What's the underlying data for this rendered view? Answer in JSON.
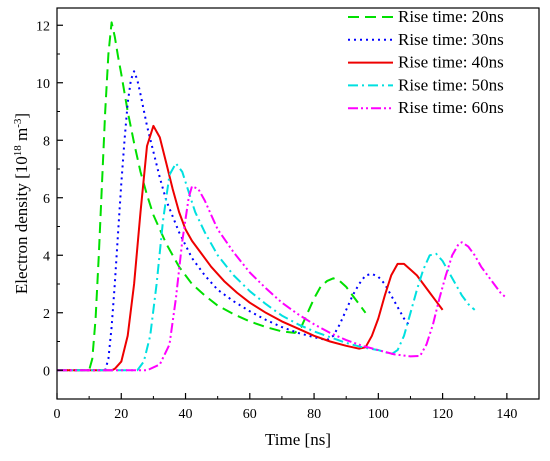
{
  "chart_data": {
    "type": "line",
    "xlabel": "Time [ns]",
    "ylabel": {
      "base": "Electron density [10",
      "exp1": "18",
      "mid": " m",
      "exp2": "-3",
      "end": "]"
    },
    "xlim": [
      0,
      150
    ],
    "ylim": [
      -1,
      12.6
    ],
    "xticks": [
      0,
      20,
      40,
      60,
      80,
      100,
      120,
      140
    ],
    "yticks": [
      0,
      2,
      4,
      6,
      8,
      10,
      12
    ],
    "grid": false,
    "legend_position": "top-right",
    "series": [
      {
        "name": "Rise time: 20ns",
        "color": "#00e000",
        "dash": "dashed",
        "points": [
          [
            0,
            0
          ],
          [
            10,
            0
          ],
          [
            11,
            0.4
          ],
          [
            12,
            1.8
          ],
          [
            13,
            4
          ],
          [
            14,
            6.5
          ],
          [
            15,
            9
          ],
          [
            16,
            11
          ],
          [
            17,
            12.1
          ],
          [
            18,
            11.6
          ],
          [
            19,
            10.9
          ],
          [
            20,
            10.3
          ],
          [
            22,
            9.0
          ],
          [
            24,
            7.9
          ],
          [
            26,
            6.9
          ],
          [
            28,
            6.1
          ],
          [
            30,
            5.4
          ],
          [
            34,
            4.4
          ],
          [
            38,
            3.6
          ],
          [
            42,
            3.0
          ],
          [
            46,
            2.6
          ],
          [
            50,
            2.25
          ],
          [
            55,
            1.95
          ],
          [
            60,
            1.7
          ],
          [
            65,
            1.5
          ],
          [
            70,
            1.35
          ],
          [
            74,
            1.3
          ],
          [
            76,
            1.5
          ],
          [
            78,
            2.0
          ],
          [
            80,
            2.5
          ],
          [
            82,
            2.9
          ],
          [
            84,
            3.1
          ],
          [
            86,
            3.2
          ],
          [
            88,
            3.1
          ],
          [
            90,
            2.9
          ],
          [
            92,
            2.6
          ],
          [
            94,
            2.3
          ],
          [
            96,
            2.0
          ]
        ]
      },
      {
        "name": "Rise time: 30ns",
        "color": "#0000ff",
        "dash": "dotted",
        "points": [
          [
            0,
            0
          ],
          [
            15,
            0
          ],
          [
            16,
            0.4
          ],
          [
            17,
            1.5
          ],
          [
            18,
            3
          ],
          [
            19,
            4.8
          ],
          [
            20,
            6.5
          ],
          [
            21,
            8
          ],
          [
            22,
            9.3
          ],
          [
            23,
            10.1
          ],
          [
            24,
            10.4
          ],
          [
            25,
            10.1
          ],
          [
            26,
            9.6
          ],
          [
            28,
            8.5
          ],
          [
            30,
            7.6
          ],
          [
            32,
            6.7
          ],
          [
            34,
            5.9
          ],
          [
            38,
            4.8
          ],
          [
            42,
            3.9
          ],
          [
            46,
            3.3
          ],
          [
            50,
            2.8
          ],
          [
            55,
            2.4
          ],
          [
            60,
            2.05
          ],
          [
            65,
            1.75
          ],
          [
            70,
            1.5
          ],
          [
            75,
            1.3
          ],
          [
            80,
            1.15
          ],
          [
            84,
            1.05
          ],
          [
            86,
            1.2
          ],
          [
            88,
            1.6
          ],
          [
            90,
            2.1
          ],
          [
            92,
            2.6
          ],
          [
            94,
            3.0
          ],
          [
            96,
            3.3
          ],
          [
            98,
            3.35
          ],
          [
            100,
            3.25
          ],
          [
            102,
            3.0
          ],
          [
            104,
            2.6
          ],
          [
            106,
            2.2
          ],
          [
            108,
            1.8
          ],
          [
            110,
            1.5
          ]
        ]
      },
      {
        "name": "Rise time: 40ns",
        "color": "#ee0000",
        "dash": "solid",
        "points": [
          [
            0,
            0
          ],
          [
            17,
            0
          ],
          [
            18,
            0.05
          ],
          [
            20,
            0.3
          ],
          [
            22,
            1.2
          ],
          [
            24,
            3
          ],
          [
            26,
            5.5
          ],
          [
            28,
            7.8
          ],
          [
            30,
            8.5
          ],
          [
            31,
            8.3
          ],
          [
            32,
            8.1
          ],
          [
            34,
            7.2
          ],
          [
            36,
            6.3
          ],
          [
            38,
            5.5
          ],
          [
            40,
            4.9
          ],
          [
            42,
            4.5
          ],
          [
            44,
            4.2
          ],
          [
            48,
            3.6
          ],
          [
            52,
            3.1
          ],
          [
            56,
            2.7
          ],
          [
            60,
            2.35
          ],
          [
            65,
            2.0
          ],
          [
            70,
            1.7
          ],
          [
            75,
            1.45
          ],
          [
            80,
            1.2
          ],
          [
            85,
            1.0
          ],
          [
            90,
            0.85
          ],
          [
            94,
            0.75
          ],
          [
            96,
            0.8
          ],
          [
            98,
            1.2
          ],
          [
            100,
            1.8
          ],
          [
            102,
            2.6
          ],
          [
            104,
            3.3
          ],
          [
            106,
            3.7
          ],
          [
            108,
            3.7
          ],
          [
            110,
            3.5
          ],
          [
            112,
            3.3
          ],
          [
            114,
            3.0
          ],
          [
            116,
            2.7
          ],
          [
            118,
            2.4
          ],
          [
            120,
            2.1
          ]
        ]
      },
      {
        "name": "Rise time: 50ns",
        "color": "#00e0e0",
        "dash": "dashdot",
        "points": [
          [
            0,
            0
          ],
          [
            25,
            0
          ],
          [
            27,
            0.3
          ],
          [
            29,
            1.2
          ],
          [
            31,
            3
          ],
          [
            33,
            5.2
          ],
          [
            35,
            6.8
          ],
          [
            37,
            7.2
          ],
          [
            39,
            6.9
          ],
          [
            41,
            6.2
          ],
          [
            43,
            5.5
          ],
          [
            46,
            4.8
          ],
          [
            50,
            4.0
          ],
          [
            55,
            3.3
          ],
          [
            60,
            2.75
          ],
          [
            65,
            2.3
          ],
          [
            70,
            1.9
          ],
          [
            75,
            1.6
          ],
          [
            80,
            1.35
          ],
          [
            85,
            1.15
          ],
          [
            90,
            0.95
          ],
          [
            95,
            0.8
          ],
          [
            100,
            0.7
          ],
          [
            103,
            0.6
          ],
          [
            104,
            0.55
          ],
          [
            106,
            0.7
          ],
          [
            108,
            1.2
          ],
          [
            110,
            2.0
          ],
          [
            112,
            2.8
          ],
          [
            114,
            3.5
          ],
          [
            116,
            4.0
          ],
          [
            118,
            4.05
          ],
          [
            120,
            3.8
          ],
          [
            122,
            3.4
          ],
          [
            124,
            3.0
          ],
          [
            126,
            2.6
          ],
          [
            128,
            2.3
          ],
          [
            130,
            2.1
          ]
        ]
      },
      {
        "name": "Rise time: 60ns",
        "color": "#ff00ff",
        "dash": "dashdotdot",
        "points": [
          [
            0,
            0
          ],
          [
            28,
            0
          ],
          [
            32,
            0.2
          ],
          [
            35,
            0.9
          ],
          [
            37,
            2.5
          ],
          [
            39,
            4.5
          ],
          [
            41,
            6.0
          ],
          [
            42,
            6.4
          ],
          [
            44,
            6.3
          ],
          [
            46,
            5.9
          ],
          [
            48,
            5.4
          ],
          [
            50,
            4.9
          ],
          [
            55,
            4.1
          ],
          [
            60,
            3.4
          ],
          [
            65,
            2.85
          ],
          [
            70,
            2.35
          ],
          [
            75,
            1.95
          ],
          [
            80,
            1.6
          ],
          [
            85,
            1.3
          ],
          [
            90,
            1.05
          ],
          [
            95,
            0.85
          ],
          [
            100,
            0.7
          ],
          [
            105,
            0.55
          ],
          [
            110,
            0.48
          ],
          [
            113,
            0.5
          ],
          [
            115,
            0.9
          ],
          [
            117,
            1.6
          ],
          [
            119,
            2.5
          ],
          [
            121,
            3.3
          ],
          [
            123,
            4.0
          ],
          [
            125,
            4.4
          ],
          [
            126,
            4.45
          ],
          [
            128,
            4.3
          ],
          [
            130,
            4.0
          ],
          [
            132,
            3.6
          ],
          [
            134,
            3.3
          ],
          [
            136,
            3.0
          ],
          [
            138,
            2.7
          ],
          [
            140,
            2.5
          ]
        ]
      }
    ]
  }
}
